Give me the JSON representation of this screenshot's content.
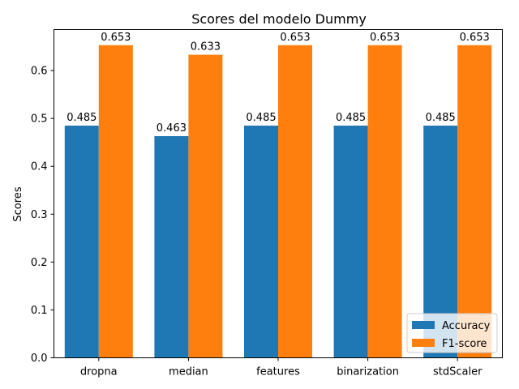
{
  "chart_data": {
    "type": "bar",
    "title": "Scores del modelo Dummy",
    "xlabel": "",
    "ylabel": "Scores",
    "categories": [
      "dropna",
      "median",
      "features",
      "binarization",
      "stdScaler"
    ],
    "series": [
      {
        "name": "Accuracy",
        "values": [
          0.485,
          0.463,
          0.485,
          0.485,
          0.485
        ],
        "labels": [
          "0.485",
          "0.463",
          "0.485",
          "0.485",
          "0.485"
        ],
        "color": "#1f77b4"
      },
      {
        "name": "F1-score",
        "values": [
          0.653,
          0.633,
          0.653,
          0.653,
          0.653
        ],
        "labels": [
          "0.653",
          "0.633",
          "0.653",
          "0.653",
          "0.653"
        ],
        "color": "#ff7f0e"
      }
    ],
    "ylim": [
      0,
      0.6856
    ],
    "yticks": [
      "0.0",
      "0.1",
      "0.2",
      "0.3",
      "0.4",
      "0.5",
      "0.6"
    ],
    "grid": false,
    "legend_position": "lower-right"
  }
}
